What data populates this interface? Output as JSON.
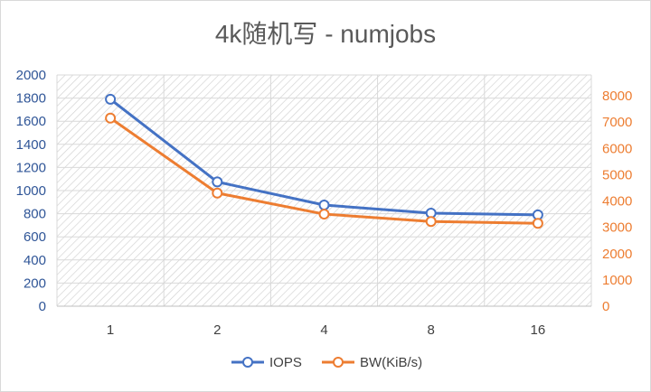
{
  "chart_data": {
    "type": "line",
    "title": "4k随机写 - numjobs",
    "categories": [
      "1",
      "2",
      "4",
      "8",
      "16"
    ],
    "series": [
      {
        "name": "IOPS",
        "axis": "left",
        "color": "#4472c4",
        "values": [
          1790,
          1075,
          875,
          805,
          790
        ]
      },
      {
        "name": "BW(KiB/s)",
        "axis": "right",
        "color": "#ed7d31",
        "values": [
          7150,
          4300,
          3500,
          3220,
          3150
        ]
      }
    ],
    "y_left": {
      "range": [
        0,
        2000
      ],
      "ticks": [
        "0",
        "200",
        "400",
        "600",
        "800",
        "1000",
        "1200",
        "1400",
        "1600",
        "1800",
        "2000"
      ],
      "color": "#2f5597"
    },
    "y_right": {
      "range": [
        0,
        8000
      ],
      "ticks": [
        "0",
        "1000",
        "2000",
        "3000",
        "4000",
        "5000",
        "6000",
        "7000",
        "8000"
      ],
      "color": "#ed7d31"
    },
    "grid": true,
    "plot_background": "hatched",
    "legend_position": "bottom",
    "marker": "hollow-circle"
  }
}
